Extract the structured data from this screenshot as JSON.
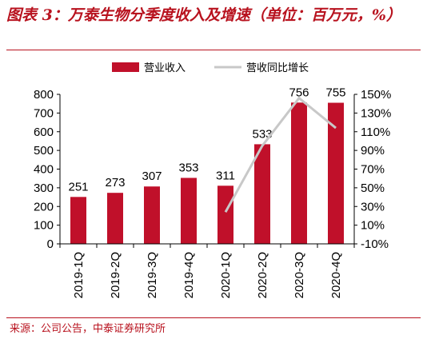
{
  "header": {
    "title": "图表 3：万泰生物分季度收入及增速（单位：百万元，%）"
  },
  "footer": {
    "source": "来源：公司公告，中泰证券研究所"
  },
  "colors": {
    "accent": "#b8121e",
    "bar": "#c0102a",
    "line": "#c8c8c8"
  },
  "chart_data": {
    "type": "bar",
    "categories": [
      "2019-1Q",
      "2019-2Q",
      "2019-3Q",
      "2019-4Q",
      "2020-1Q",
      "2020-2Q",
      "2020-3Q",
      "2020-4Q"
    ],
    "series": [
      {
        "name": "营业收入",
        "type": "bar",
        "axis": "left",
        "values": [
          251,
          273,
          307,
          353,
          311,
          533,
          756,
          755
        ]
      },
      {
        "name": "营收同比增长",
        "type": "line",
        "axis": "right",
        "values": [
          null,
          null,
          null,
          null,
          24,
          95,
          146,
          114
        ]
      }
    ],
    "data_labels": [
      "251",
      "273",
      "307",
      "353",
      "311",
      "533",
      "756",
      "755"
    ],
    "ylim_left": [
      0,
      800
    ],
    "yticks_left": [
      "0",
      "100",
      "200",
      "300",
      "400",
      "500",
      "600",
      "700",
      "800"
    ],
    "ylim_right": [
      -10,
      150
    ],
    "yticks_right": [
      "-10%",
      "10%",
      "30%",
      "50%",
      "70%",
      "90%",
      "110%",
      "130%",
      "150%"
    ],
    "legend_position": "top-center",
    "grid": false
  }
}
